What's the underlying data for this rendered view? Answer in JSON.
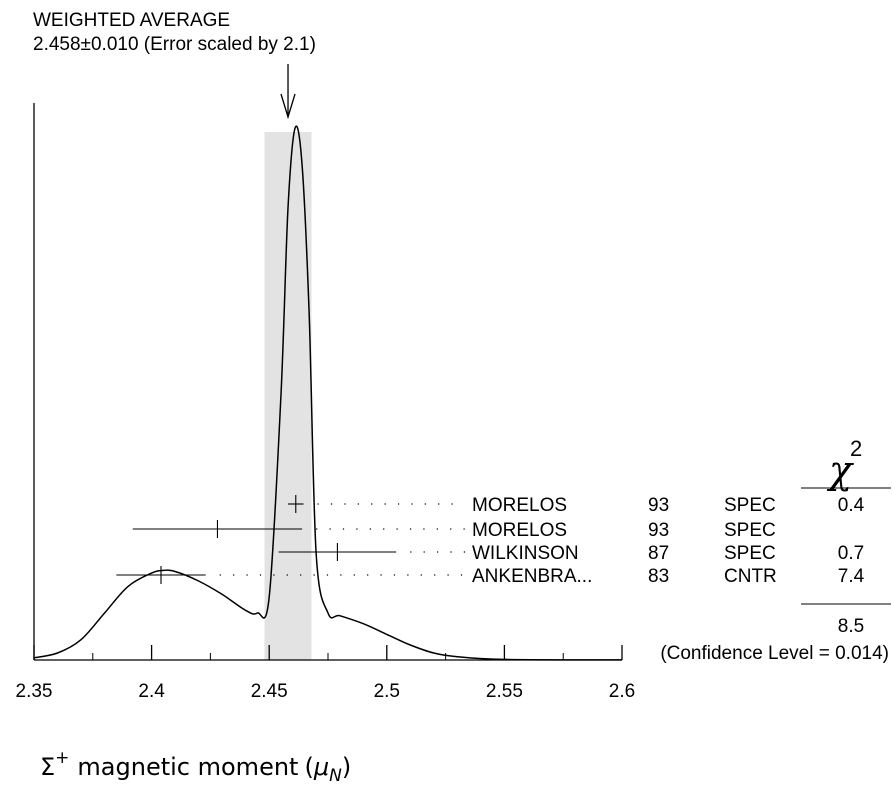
{
  "chart_data": {
    "type": "ideogram",
    "title_line1": "WEIGHTED AVERAGE",
    "title_line2": "2.458±0.010 (Error scaled by 2.1)",
    "average": {
      "value": 2.458,
      "error": 0.01
    },
    "xlabel_symbol": "Σ",
    "xlabel_sup": "+",
    "xlabel_text": "magnetic moment",
    "xlabel_unit_prefix": "(",
    "xlabel_unit_mu": "μ",
    "xlabel_unit_sub": "N",
    "xlabel_unit_suffix": ")",
    "xlim": [
      2.35,
      2.6
    ],
    "x_ticks": [
      "2.35",
      "2.4",
      "2.45",
      "2.5",
      "2.55",
      "2.6"
    ],
    "chi2_header": "χ",
    "chi2_sup": "2",
    "measurements": [
      {
        "author": "MORELOS",
        "year": "93",
        "tech": "SPEC",
        "value": 2.4613,
        "err_low": 0.0033,
        "err_high": 0.0033,
        "chi2": "0.4"
      },
      {
        "author": "MORELOS",
        "year": "93",
        "tech": "SPEC",
        "value": 2.428,
        "err_low": 0.036,
        "err_high": 0.036,
        "chi2": ""
      },
      {
        "author": "WILKINSON",
        "year": "87",
        "tech": "SPEC",
        "value": 2.479,
        "err_low": 0.025,
        "err_high": 0.025,
        "chi2": "0.7"
      },
      {
        "author": "ANKENBRA...",
        "year": "83",
        "tech": "CNTR",
        "value": 2.404,
        "err_low": 0.019,
        "err_high": 0.019,
        "chi2": "7.4"
      }
    ],
    "chi2_total": "8.5",
    "confidence_text": "(Confidence Level = 0.014)",
    "ideogram_curve": [
      [
        2.35,
        0.006
      ],
      [
        2.36,
        0.015
      ],
      [
        2.37,
        0.04
      ],
      [
        2.38,
        0.09
      ],
      [
        2.39,
        0.14
      ],
      [
        2.4,
        0.165
      ],
      [
        2.405,
        0.17
      ],
      [
        2.41,
        0.168
      ],
      [
        2.42,
        0.15
      ],
      [
        2.43,
        0.125
      ],
      [
        2.44,
        0.095
      ],
      [
        2.445,
        0.09
      ],
      [
        2.45,
        0.12
      ],
      [
        2.455,
        0.5
      ],
      [
        2.458,
        0.85
      ],
      [
        2.461,
        1.0
      ],
      [
        2.464,
        0.93
      ],
      [
        2.467,
        0.65
      ],
      [
        2.47,
        0.2
      ],
      [
        2.475,
        0.09
      ],
      [
        2.48,
        0.085
      ],
      [
        2.49,
        0.07
      ],
      [
        2.5,
        0.05
      ],
      [
        2.51,
        0.03
      ],
      [
        2.52,
        0.015
      ],
      [
        2.53,
        0.008
      ],
      [
        2.55,
        0.003
      ],
      [
        2.6,
        0.002
      ]
    ]
  }
}
